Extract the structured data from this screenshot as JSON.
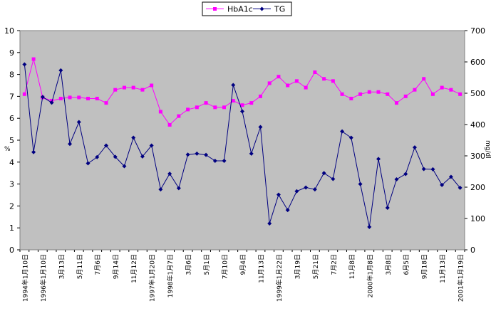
{
  "chart_data": {
    "type": "line",
    "legend_position": "top-center",
    "left_axis": {
      "label": "%",
      "ylim": [
        0,
        10
      ],
      "ticks": [
        "0",
        "1",
        "2",
        "3",
        "4",
        "5",
        "6",
        "7",
        "8",
        "9",
        "10"
      ]
    },
    "right_axis": {
      "label": "mg/dl",
      "ylim": [
        0,
        700
      ],
      "ticks": [
        "0",
        "100",
        "200",
        "300",
        "400",
        "500",
        "600",
        "700"
      ]
    },
    "background_color": "#c0c0c0",
    "x_tick_labels": [
      "1994年1月10日",
      "1996年1月10日",
      "3月13日",
      "5月11日",
      "7月6日",
      "9月14日",
      "11月12日",
      "1997年1月20日",
      "1998年1月7日",
      "3月6日",
      "5月1日",
      "7月10日",
      "9月4日",
      "11月13日",
      "1999年1月22日",
      "3月19日",
      "5月21日",
      "7月2日",
      "11月8日",
      "2000年1月8日",
      "3月8日",
      "6月5日",
      "9月18日",
      "11月13日",
      "2001年1月19日"
    ],
    "series": [
      {
        "name": "HbA1c",
        "axis": "left",
        "color": "#ff00ff",
        "marker": "square",
        "values": [
          7.1,
          8.7,
          6.95,
          6.8,
          6.9,
          6.95,
          6.95,
          6.9,
          6.9,
          6.7,
          7.3,
          7.4,
          7.4,
          7.3,
          7.5,
          6.3,
          5.7,
          6.1,
          6.4,
          6.5,
          6.7,
          6.5,
          6.5,
          6.8,
          6.6,
          6.7,
          7.0,
          7.6,
          7.9,
          7.5,
          7.7,
          7.4,
          8.1,
          7.8,
          7.7,
          7.1,
          6.9,
          7.1,
          7.2,
          7.2,
          7.1,
          6.7,
          7.0,
          7.3,
          7.8,
          7.1,
          7.4,
          7.3,
          7.1
        ]
      },
      {
        "name": "TG",
        "axis": "right",
        "color": "#000080",
        "marker": "diamond",
        "values": [
          592,
          312,
          488,
          470,
          573,
          338,
          408,
          276,
          296,
          333,
          297,
          267,
          358,
          298,
          333,
          193,
          243,
          197,
          304,
          307,
          303,
          284,
          284,
          526,
          442,
          307,
          392,
          84,
          176,
          127,
          187,
          199,
          193,
          245,
          226,
          378,
          358,
          210,
          73,
          290,
          134,
          225,
          242,
          327,
          258,
          257,
          207,
          233,
          198
        ]
      }
    ]
  }
}
